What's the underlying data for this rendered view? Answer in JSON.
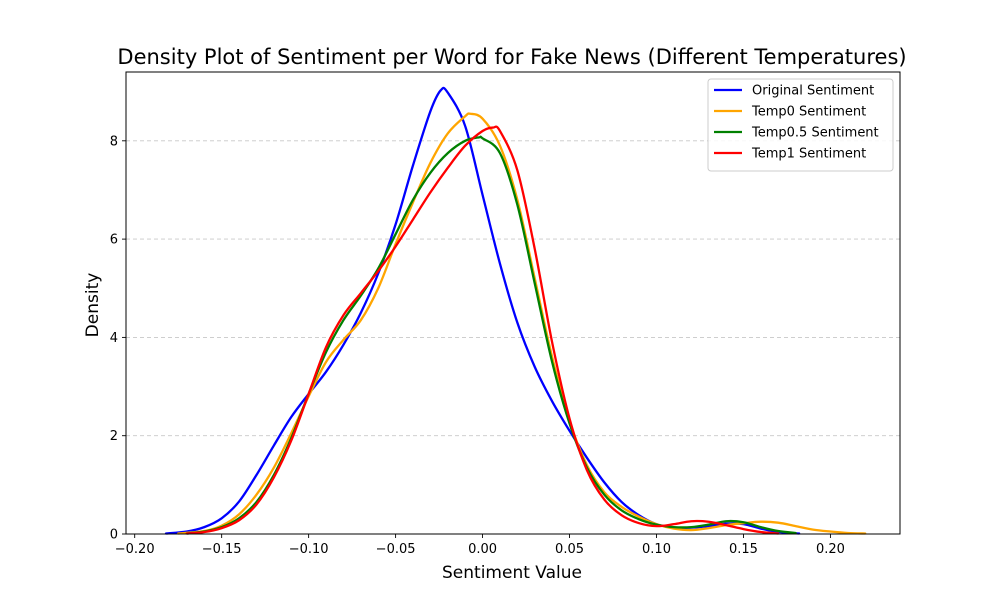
{
  "chart_data": {
    "type": "line",
    "title": "Density Plot of Sentiment per Word for Fake News (Different Temperatures)",
    "xlabel": "Sentiment Value",
    "ylabel": "Density",
    "xlim": [
      -0.205,
      0.24
    ],
    "ylim": [
      0,
      9.4
    ],
    "x_ticks": [
      -0.2,
      -0.15,
      -0.1,
      -0.05,
      0.0,
      0.05,
      0.1,
      0.15,
      0.2
    ],
    "x_tick_labels": [
      "−0.20",
      "−0.15",
      "−0.10",
      "−0.05",
      "0.00",
      "0.05",
      "0.10",
      "0.15",
      "0.20"
    ],
    "y_ticks": [
      0,
      2,
      4,
      6,
      8
    ],
    "y_tick_labels": [
      "0",
      "2",
      "4",
      "6",
      "8"
    ],
    "grid": "horizontal-dashed",
    "legend_position": "top-right",
    "series": [
      {
        "name": "Original Sentiment",
        "color": "#0000ff",
        "points": [
          [
            -0.182,
            0.01
          ],
          [
            -0.17,
            0.05
          ],
          [
            -0.16,
            0.14
          ],
          [
            -0.15,
            0.32
          ],
          [
            -0.14,
            0.66
          ],
          [
            -0.13,
            1.2
          ],
          [
            -0.12,
            1.8
          ],
          [
            -0.11,
            2.38
          ],
          [
            -0.1,
            2.85
          ],
          [
            -0.09,
            3.3
          ],
          [
            -0.08,
            3.85
          ],
          [
            -0.07,
            4.5
          ],
          [
            -0.06,
            5.3
          ],
          [
            -0.05,
            6.3
          ],
          [
            -0.04,
            7.5
          ],
          [
            -0.03,
            8.6
          ],
          [
            -0.024,
            9.03
          ],
          [
            -0.02,
            8.98
          ],
          [
            -0.01,
            8.3
          ],
          [
            0.0,
            6.9
          ],
          [
            0.01,
            5.5
          ],
          [
            0.02,
            4.3
          ],
          [
            0.03,
            3.4
          ],
          [
            0.04,
            2.7
          ],
          [
            0.05,
            2.1
          ],
          [
            0.06,
            1.55
          ],
          [
            0.07,
            1.05
          ],
          [
            0.08,
            0.65
          ],
          [
            0.09,
            0.38
          ],
          [
            0.1,
            0.2
          ],
          [
            0.11,
            0.13
          ],
          [
            0.12,
            0.13
          ],
          [
            0.13,
            0.16
          ],
          [
            0.14,
            0.21
          ],
          [
            0.15,
            0.2
          ],
          [
            0.16,
            0.11
          ],
          [
            0.17,
            0.04
          ],
          [
            0.182,
            0.01
          ]
        ]
      },
      {
        "name": "Temp0 Sentiment",
        "color": "#ffa500",
        "points": [
          [
            -0.175,
            0.01
          ],
          [
            -0.16,
            0.06
          ],
          [
            -0.15,
            0.17
          ],
          [
            -0.14,
            0.4
          ],
          [
            -0.13,
            0.8
          ],
          [
            -0.12,
            1.35
          ],
          [
            -0.11,
            2.05
          ],
          [
            -0.1,
            2.8
          ],
          [
            -0.09,
            3.5
          ],
          [
            -0.08,
            3.95
          ],
          [
            -0.07,
            4.35
          ],
          [
            -0.06,
            5.0
          ],
          [
            -0.05,
            5.9
          ],
          [
            -0.04,
            6.75
          ],
          [
            -0.03,
            7.55
          ],
          [
            -0.02,
            8.15
          ],
          [
            -0.01,
            8.5
          ],
          [
            -0.007,
            8.55
          ],
          [
            0.0,
            8.45
          ],
          [
            0.01,
            7.9
          ],
          [
            0.02,
            6.8
          ],
          [
            0.03,
            5.2
          ],
          [
            0.04,
            3.6
          ],
          [
            0.05,
            2.3
          ],
          [
            0.06,
            1.4
          ],
          [
            0.07,
            0.85
          ],
          [
            0.08,
            0.55
          ],
          [
            0.09,
            0.35
          ],
          [
            0.1,
            0.2
          ],
          [
            0.11,
            0.11
          ],
          [
            0.12,
            0.08
          ],
          [
            0.13,
            0.12
          ],
          [
            0.14,
            0.18
          ],
          [
            0.15,
            0.22
          ],
          [
            0.16,
            0.25
          ],
          [
            0.17,
            0.23
          ],
          [
            0.18,
            0.16
          ],
          [
            0.19,
            0.09
          ],
          [
            0.2,
            0.05
          ],
          [
            0.21,
            0.02
          ],
          [
            0.22,
            0.01
          ]
        ]
      },
      {
        "name": "Temp0.5 Sentiment",
        "color": "#008000",
        "points": [
          [
            -0.17,
            0.01
          ],
          [
            -0.16,
            0.05
          ],
          [
            -0.15,
            0.14
          ],
          [
            -0.14,
            0.32
          ],
          [
            -0.13,
            0.65
          ],
          [
            -0.12,
            1.2
          ],
          [
            -0.11,
            1.95
          ],
          [
            -0.1,
            2.85
          ],
          [
            -0.09,
            3.7
          ],
          [
            -0.08,
            4.35
          ],
          [
            -0.07,
            4.85
          ],
          [
            -0.06,
            5.4
          ],
          [
            -0.05,
            6.1
          ],
          [
            -0.04,
            6.8
          ],
          [
            -0.03,
            7.35
          ],
          [
            -0.02,
            7.75
          ],
          [
            -0.01,
            8.0
          ],
          [
            -0.002,
            8.07
          ],
          [
            0.0,
            8.05
          ],
          [
            0.01,
            7.75
          ],
          [
            0.02,
            6.7
          ],
          [
            0.03,
            5.1
          ],
          [
            0.04,
            3.5
          ],
          [
            0.05,
            2.25
          ],
          [
            0.06,
            1.35
          ],
          [
            0.07,
            0.8
          ],
          [
            0.08,
            0.48
          ],
          [
            0.09,
            0.3
          ],
          [
            0.1,
            0.19
          ],
          [
            0.11,
            0.14
          ],
          [
            0.12,
            0.14
          ],
          [
            0.13,
            0.19
          ],
          [
            0.14,
            0.26
          ],
          [
            0.15,
            0.24
          ],
          [
            0.16,
            0.14
          ],
          [
            0.17,
            0.06
          ],
          [
            0.18,
            0.02
          ]
        ]
      },
      {
        "name": "Temp1 Sentiment",
        "color": "#ff0000",
        "points": [
          [
            -0.17,
            0.01
          ],
          [
            -0.16,
            0.04
          ],
          [
            -0.15,
            0.12
          ],
          [
            -0.14,
            0.28
          ],
          [
            -0.13,
            0.6
          ],
          [
            -0.12,
            1.15
          ],
          [
            -0.11,
            1.9
          ],
          [
            -0.1,
            2.85
          ],
          [
            -0.09,
            3.8
          ],
          [
            -0.08,
            4.45
          ],
          [
            -0.07,
            4.9
          ],
          [
            -0.06,
            5.35
          ],
          [
            -0.05,
            5.85
          ],
          [
            -0.04,
            6.4
          ],
          [
            -0.03,
            6.95
          ],
          [
            -0.02,
            7.45
          ],
          [
            -0.01,
            7.9
          ],
          [
            0.0,
            8.2
          ],
          [
            0.006,
            8.27
          ],
          [
            0.01,
            8.2
          ],
          [
            0.02,
            7.4
          ],
          [
            0.03,
            5.8
          ],
          [
            0.04,
            3.9
          ],
          [
            0.05,
            2.35
          ],
          [
            0.06,
            1.3
          ],
          [
            0.07,
            0.7
          ],
          [
            0.08,
            0.38
          ],
          [
            0.09,
            0.22
          ],
          [
            0.1,
            0.16
          ],
          [
            0.11,
            0.2
          ],
          [
            0.12,
            0.26
          ],
          [
            0.13,
            0.25
          ],
          [
            0.14,
            0.18
          ],
          [
            0.15,
            0.1
          ],
          [
            0.16,
            0.04
          ],
          [
            0.17,
            0.01
          ]
        ]
      }
    ]
  }
}
